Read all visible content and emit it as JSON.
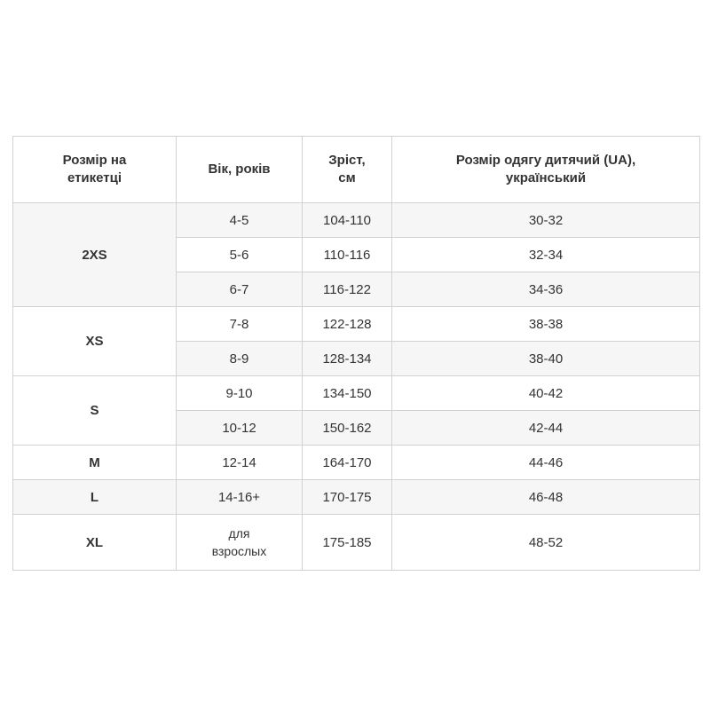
{
  "table": {
    "headers": [
      "Розмір на етикетці",
      "Вік, років",
      "Зріст, см",
      "Розмір одягу дитячий (UA), український"
    ],
    "header_lines": [
      [
        "Розмір на",
        "етикетці"
      ],
      [
        "Вік, років"
      ],
      [
        "Зріст,",
        "см"
      ],
      [
        "Розмір одягу дитячий (UA),",
        "український"
      ]
    ],
    "rows": [
      {
        "size": "2XS",
        "age": "4-5",
        "height": "104-110",
        "ua": "30-32"
      },
      {
        "age": "5-6",
        "height": "110-116",
        "ua": "32-34"
      },
      {
        "age": "6-7",
        "height": "116-122",
        "ua": "34-36"
      },
      {
        "size": "XS",
        "age": "7-8",
        "height": "122-128",
        "ua": "38-38"
      },
      {
        "age": "8-9",
        "height": "128-134",
        "ua": "38-40"
      },
      {
        "size": "S",
        "age": "9-10",
        "height": "134-150",
        "ua": "40-42"
      },
      {
        "age": "10-12",
        "height": "150-162",
        "ua": "42-44"
      },
      {
        "size": "M",
        "age": "12-14",
        "height": "164-170",
        "ua": "44-46"
      },
      {
        "size": "L",
        "age": "14-16+",
        "height": "170-175",
        "ua": "46-48"
      },
      {
        "size": "XL",
        "age_lines": [
          "для",
          "взрослых"
        ],
        "height": "175-185",
        "ua": "48-52"
      }
    ]
  },
  "colors": {
    "stripe": "#f6f6f6",
    "border": "#d2d2d2",
    "text": "#333333"
  }
}
